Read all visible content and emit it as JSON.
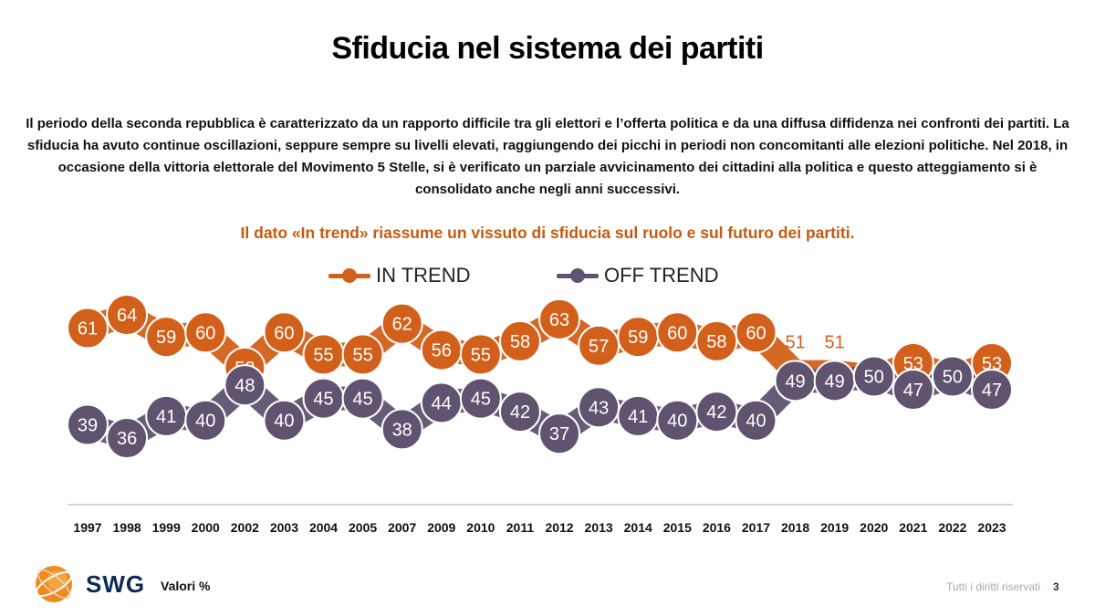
{
  "header": {
    "title": "Sfiducia nel sistema dei partiti",
    "intro": "Il periodo della seconda repubblica è caratterizzato da un rapporto difficile tra gli elettori e l’offerta politica e da una diffusa diffidenza nei confronti dei partiti. La sfiducia ha avuto continue oscillazioni, seppure sempre su livelli elevati, raggiungendo dei picchi in periodi non concomitanti alle elezioni politiche. Nel 2018, in occasione della vittoria elettorale del Movimento 5 Stelle, si è verificato un parziale avvicinamento dei cittadini alla politica e questo atteggiamento si è consolidato anche negli anni successivi.",
    "highlight": "Il dato «In trend» riassume un vissuto di sfiducia sul ruolo e sul futuro dei partiti."
  },
  "colors": {
    "in_trend": "#d2601a",
    "in_trend_border": "#ffffff",
    "off_trend": "#5f5370",
    "highlight_text": "#c55a11",
    "axis": "#c8c8c8"
  },
  "chart_data": {
    "type": "line",
    "title": "",
    "xlabel": "",
    "ylabel": "",
    "categories": [
      "1997",
      "1998",
      "1999",
      "2000",
      "2002",
      "2003",
      "2004",
      "2005",
      "2007",
      "2009",
      "2010",
      "2011",
      "2012",
      "2013",
      "2014",
      "2015",
      "2016",
      "2017",
      "2018",
      "2019",
      "2020",
      "2021",
      "2022",
      "2023"
    ],
    "series": [
      {
        "name": "IN TREND",
        "values": [
          61,
          64,
          59,
          60,
          52,
          60,
          55,
          55,
          62,
          56,
          55,
          58,
          63,
          57,
          59,
          60,
          58,
          60,
          51,
          51,
          50,
          53,
          50,
          53
        ]
      },
      {
        "name": "OFF TREND",
        "values": [
          39,
          36,
          41,
          40,
          48,
          40,
          45,
          45,
          38,
          44,
          45,
          42,
          37,
          43,
          41,
          40,
          42,
          40,
          49,
          49,
          50,
          47,
          50,
          47
        ]
      }
    ],
    "legend": "top-center",
    "grid": false
  },
  "footer": {
    "logo_text": "SWG",
    "note": "Valori %",
    "rights": "Tutti i diritti riservati",
    "page": "3"
  }
}
